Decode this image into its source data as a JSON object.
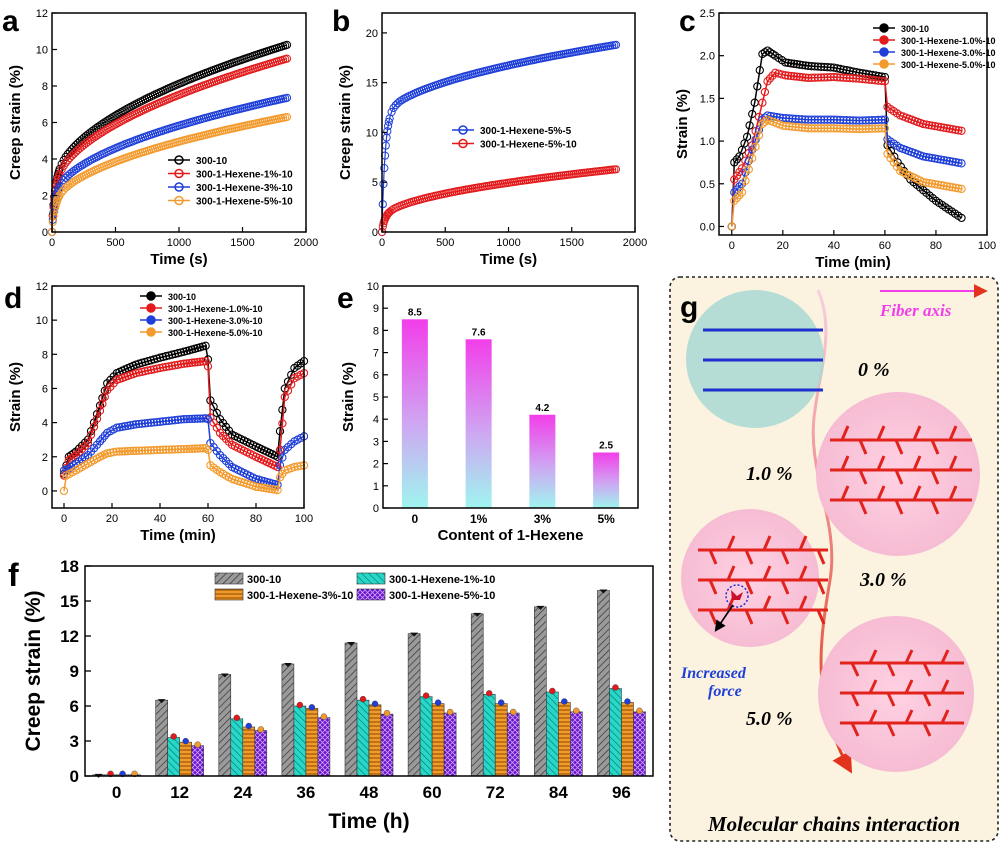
{
  "colors": {
    "black": "#000000",
    "red": "#e31a1c",
    "blue": "#1f3fd8",
    "orange": "#f39a2d",
    "magenta": "#f23ee9",
    "cyan": "#9ff5ef",
    "gray": "#9a9a9a",
    "teal": "#27d8c9",
    "violet": "#6a12c7",
    "panel_bg": "#fbf3e0"
  },
  "chart_data": [
    {
      "id": "a",
      "type": "scatter",
      "panel_label": "a",
      "xlabel": "Time (s)",
      "ylabel": "Creep strain (%)",
      "xlim": [
        0,
        2000
      ],
      "ylim": [
        0,
        12
      ],
      "xticks": [
        0,
        500,
        1000,
        1500,
        2000
      ],
      "yticks": [
        0,
        2,
        4,
        6,
        8,
        10,
        12
      ],
      "x_end": 1850,
      "legend": "bottom-right",
      "series": [
        {
          "name": "300-10",
          "color": "black",
          "final": 10.25,
          "b": 2.2
        },
        {
          "name": "300-1-Hexene-1%-10",
          "color": "red",
          "final": 9.5,
          "b": 2.0
        },
        {
          "name": "300-1-Hexene-3%-10",
          "color": "blue",
          "final": 7.35,
          "b": 1.6
        },
        {
          "name": "300-1-Hexene-5%-10",
          "color": "orange",
          "final": 6.3,
          "b": 1.2
        }
      ]
    },
    {
      "id": "b",
      "type": "scatter",
      "panel_label": "b",
      "xlabel": "Time (s)",
      "ylabel": "Creep strain (%)",
      "xlim": [
        0,
        2000
      ],
      "ylim": [
        0,
        22
      ],
      "xticks": [
        0,
        500,
        1000,
        1500,
        2000
      ],
      "yticks": [
        0,
        5,
        10,
        15,
        20
      ],
      "x_end": 1850,
      "legend": "center-right",
      "series": [
        {
          "name": "300-1-Hexene-5%-5",
          "color": "blue",
          "final": 18.8,
          "b": 11.0
        },
        {
          "name": "300-1-Hexene-5%-10",
          "color": "red",
          "final": 6.3,
          "b": 1.2
        }
      ]
    },
    {
      "id": "c",
      "type": "line",
      "panel_label": "c",
      "xlabel": "Time (min)",
      "ylabel": "Strain  (%)",
      "xlim": [
        -5,
        100
      ],
      "ylim": [
        -0.1,
        2.5
      ],
      "xticks": [
        0,
        20,
        40,
        60,
        80,
        100
      ],
      "yticks": [
        0.0,
        0.5,
        1.0,
        1.5,
        2.0,
        2.5
      ],
      "legend": "top-right",
      "series": [
        {
          "name": "300-10",
          "color": "black",
          "points": [
            [
              0,
              0
            ],
            [
              1,
              0.75
            ],
            [
              3,
              0.82
            ],
            [
              6,
              1.05
            ],
            [
              9,
              1.45
            ],
            [
              12,
              2.02
            ],
            [
              14,
              2.06
            ],
            [
              17,
              2.0
            ],
            [
              21,
              1.92
            ],
            [
              30,
              1.88
            ],
            [
              40,
              1.86
            ],
            [
              50,
              1.8
            ],
            [
              60,
              1.75
            ],
            [
              61,
              0.95
            ],
            [
              65,
              0.75
            ],
            [
              70,
              0.55
            ],
            [
              80,
              0.3
            ],
            [
              90,
              0.1
            ]
          ]
        },
        {
          "name": "300-1-Hexene-1.0%-10",
          "color": "red",
          "points": [
            [
              0,
              0
            ],
            [
              1,
              0.55
            ],
            [
              4,
              0.68
            ],
            [
              8,
              0.95
            ],
            [
              12,
              1.45
            ],
            [
              14,
              1.7
            ],
            [
              17,
              1.8
            ],
            [
              21,
              1.77
            ],
            [
              30,
              1.74
            ],
            [
              40,
              1.75
            ],
            [
              50,
              1.73
            ],
            [
              60,
              1.7
            ],
            [
              61,
              1.4
            ],
            [
              66,
              1.3
            ],
            [
              75,
              1.2
            ],
            [
              90,
              1.12
            ]
          ]
        },
        {
          "name": "300-1-Hexene-3.0%-10",
          "color": "blue",
          "points": [
            [
              0,
              0
            ],
            [
              1,
              0.4
            ],
            [
              4,
              0.5
            ],
            [
              8,
              0.9
            ],
            [
              12,
              1.25
            ],
            [
              14,
              1.3
            ],
            [
              20,
              1.27
            ],
            [
              30,
              1.25
            ],
            [
              40,
              1.25
            ],
            [
              50,
              1.24
            ],
            [
              60,
              1.25
            ],
            [
              61,
              1.02
            ],
            [
              66,
              0.92
            ],
            [
              75,
              0.82
            ],
            [
              90,
              0.74
            ]
          ]
        },
        {
          "name": "300-1-Hexene-5.0%-10",
          "color": "orange",
          "points": [
            [
              0,
              0
            ],
            [
              1,
              0.3
            ],
            [
              4,
              0.4
            ],
            [
              8,
              0.8
            ],
            [
              12,
              1.2
            ],
            [
              14,
              1.25
            ],
            [
              20,
              1.18
            ],
            [
              30,
              1.15
            ],
            [
              40,
              1.15
            ],
            [
              50,
              1.14
            ],
            [
              60,
              1.15
            ],
            [
              61,
              0.85
            ],
            [
              66,
              0.65
            ],
            [
              75,
              0.52
            ],
            [
              90,
              0.44
            ]
          ]
        }
      ]
    },
    {
      "id": "d",
      "type": "line",
      "panel_label": "d",
      "xlabel": "Time (min)",
      "ylabel": "Strain (%)",
      "xlim": [
        -5,
        100
      ],
      "ylim": [
        -1,
        12
      ],
      "xticks": [
        0,
        20,
        40,
        60,
        80,
        100
      ],
      "yticks": [
        0,
        2,
        4,
        6,
        8,
        10,
        12
      ],
      "legend": "top-center",
      "series": [
        {
          "name": "300-10",
          "color": "black",
          "points": [
            [
              0,
              1.0
            ],
            [
              2,
              2.0
            ],
            [
              5,
              2.3
            ],
            [
              10,
              3.0
            ],
            [
              15,
              5.0
            ],
            [
              18,
              6.3
            ],
            [
              22,
              6.9
            ],
            [
              30,
              7.4
            ],
            [
              40,
              7.8
            ],
            [
              50,
              8.15
            ],
            [
              59,
              8.5
            ],
            [
              60,
              7.7
            ],
            [
              61,
              5.3
            ],
            [
              65,
              4.2
            ],
            [
              70,
              3.3
            ],
            [
              80,
              2.6
            ],
            [
              89,
              2.0
            ],
            [
              90,
              3.5
            ],
            [
              92,
              6.0
            ],
            [
              96,
              7.2
            ],
            [
              100,
              7.6
            ]
          ]
        },
        {
          "name": "300-1-Hexene-1.0%-10",
          "color": "red",
          "points": [
            [
              0,
              0.9
            ],
            [
              2,
              1.8
            ],
            [
              5,
              2.1
            ],
            [
              10,
              2.8
            ],
            [
              15,
              4.7
            ],
            [
              18,
              5.9
            ],
            [
              22,
              6.5
            ],
            [
              30,
              6.9
            ],
            [
              40,
              7.2
            ],
            [
              50,
              7.45
            ],
            [
              59,
              7.6
            ],
            [
              60,
              7.3
            ],
            [
              61,
              4.3
            ],
            [
              65,
              3.4
            ],
            [
              70,
              2.7
            ],
            [
              80,
              2.0
            ],
            [
              89,
              1.4
            ],
            [
              90,
              2.4
            ],
            [
              92,
              5.5
            ],
            [
              96,
              6.6
            ],
            [
              100,
              6.9
            ]
          ]
        },
        {
          "name": "300-1-Hexene-3.0%-10",
          "color": "blue",
          "points": [
            [
              0,
              1.2
            ],
            [
              2,
              1.3
            ],
            [
              5,
              1.6
            ],
            [
              10,
              2.1
            ],
            [
              15,
              2.9
            ],
            [
              18,
              3.4
            ],
            [
              22,
              3.7
            ],
            [
              30,
              3.9
            ],
            [
              40,
              4.05
            ],
            [
              50,
              4.2
            ],
            [
              59,
              4.25
            ],
            [
              60,
              4.2
            ],
            [
              61,
              2.8
            ],
            [
              65,
              2.1
            ],
            [
              70,
              1.4
            ],
            [
              80,
              0.7
            ],
            [
              89,
              0.35
            ],
            [
              90,
              1.5
            ],
            [
              92,
              2.4
            ],
            [
              96,
              2.9
            ],
            [
              100,
              3.2
            ]
          ]
        },
        {
          "name": "300-1-Hexene-5.0%-10",
          "color": "orange",
          "points": [
            [
              0,
              0.0
            ],
            [
              1,
              0.9
            ],
            [
              5,
              1.2
            ],
            [
              10,
              1.6
            ],
            [
              15,
              2.0
            ],
            [
              18,
              2.2
            ],
            [
              22,
              2.3
            ],
            [
              30,
              2.35
            ],
            [
              40,
              2.4
            ],
            [
              50,
              2.45
            ],
            [
              59,
              2.5
            ],
            [
              60,
              2.4
            ],
            [
              61,
              1.5
            ],
            [
              65,
              1.1
            ],
            [
              70,
              0.7
            ],
            [
              80,
              0.25
            ],
            [
              89,
              0.05
            ],
            [
              90,
              0.8
            ],
            [
              92,
              1.2
            ],
            [
              96,
              1.4
            ],
            [
              100,
              1.5
            ]
          ]
        }
      ]
    },
    {
      "id": "e",
      "type": "bar",
      "panel_label": "e",
      "xlabel": "Content of 1-Hexene",
      "ylabel": "Strain (%)",
      "categories": [
        "0",
        "1%",
        "3%",
        "5%"
      ],
      "values": [
        8.5,
        7.6,
        4.2,
        2.5
      ],
      "value_labels": [
        "8.5",
        "7.6",
        "4.2",
        "2.5"
      ],
      "ylim": [
        0,
        10
      ],
      "yticks": [
        0,
        1,
        2,
        3,
        4,
        5,
        6,
        7,
        8,
        9,
        10
      ]
    },
    {
      "id": "f",
      "type": "bar",
      "panel_label": "f",
      "xlabel": "Time (h)",
      "ylabel": "Creep strain (%)",
      "categories": [
        "0",
        "12",
        "24",
        "36",
        "48",
        "60",
        "72",
        "84",
        "96"
      ],
      "ylim": [
        0,
        18
      ],
      "yticks": [
        0,
        3,
        6,
        9,
        12,
        15,
        18
      ],
      "legend": "top-center",
      "series": [
        {
          "name": "300-10",
          "color": "gray",
          "values": [
            0.1,
            6.5,
            8.7,
            9.6,
            11.4,
            12.2,
            13.9,
            14.5,
            15.9
          ]
        },
        {
          "name": "300-1-Hexene-1%-10",
          "color": "teal",
          "values": [
            0.1,
            3.3,
            4.9,
            6.0,
            6.5,
            6.8,
            7.0,
            7.2,
            7.5
          ]
        },
        {
          "name": "300-1-Hexene-3%-10",
          "color": "orange",
          "values": [
            0.1,
            2.9,
            4.2,
            5.8,
            6.1,
            6.2,
            6.2,
            6.3,
            6.3
          ]
        },
        {
          "name": "300-1-Hexene-5%-10",
          "color": "violet",
          "values": [
            0.1,
            2.6,
            3.9,
            5.0,
            5.3,
            5.4,
            5.4,
            5.5,
            5.5
          ]
        }
      ]
    }
  ],
  "panel_g": {
    "label": "g",
    "fiber_axis": "Fiber axis",
    "percent_0": "0 %",
    "percent_1": "1.0 %",
    "percent_3": "3.0 %",
    "percent_5": "5.0 %",
    "increased_force_1": "Increased",
    "increased_force_2": "force",
    "footer": "Molecular chains interaction"
  }
}
